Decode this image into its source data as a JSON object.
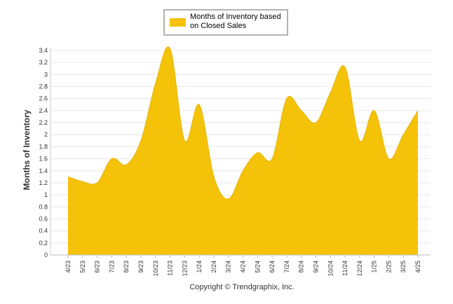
{
  "copyright": "Copyright © Trendgraphix, Inc.",
  "chart_data": {
    "type": "area",
    "title": "",
    "xlabel": "",
    "ylabel": "Months of Inventory",
    "ylim": [
      0,
      3.4
    ],
    "yticks": [
      "0",
      "0.2",
      "0.4",
      "0.6",
      "0.8",
      "1",
      "1.2",
      "1.4",
      "1.6",
      "1.8",
      "2",
      "2.2",
      "2.4",
      "2.6",
      "2.8",
      "3",
      "3.2",
      "3.4"
    ],
    "grid": true,
    "legend_position": "top-center",
    "categories": [
      "4/23",
      "5/23",
      "6/23",
      "7/23",
      "8/23",
      "9/23",
      "10/23",
      "11/23",
      "12/23",
      "1/24",
      "2/24",
      "3/24",
      "4/24",
      "5/24",
      "6/24",
      "7/24",
      "8/24",
      "9/24",
      "10/24",
      "11/24",
      "12/24",
      "1/25",
      "2/25",
      "3/25",
      "4/25"
    ],
    "series": [
      {
        "name": "Months of Inventory based on Closed Sales",
        "legend_lines": [
          "Months of Inventory based",
          "on Closed Sales"
        ],
        "color": "#f5c20a",
        "values": [
          1.3,
          1.22,
          1.2,
          1.6,
          1.5,
          1.9,
          2.85,
          3.43,
          1.9,
          2.5,
          1.3,
          0.93,
          1.4,
          1.7,
          1.6,
          2.6,
          2.4,
          2.2,
          2.7,
          3.12,
          1.9,
          2.4,
          1.6,
          2.0,
          2.4
        ]
      }
    ]
  }
}
